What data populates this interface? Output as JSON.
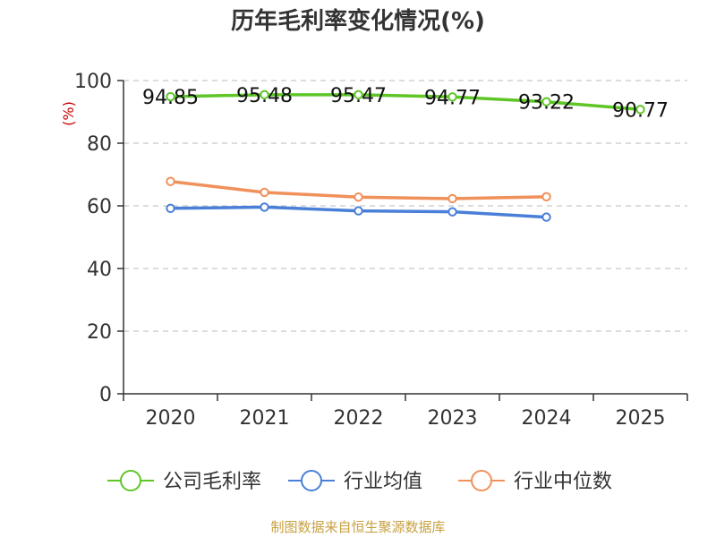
{
  "chart_data": {
    "type": "line",
    "title": "历年毛利率变化情况(%)",
    "ylabel": "(%)",
    "categories": [
      "2020",
      "2021",
      "2022",
      "2023",
      "2024",
      "2025"
    ],
    "yticks": [
      "0",
      "20",
      "40",
      "60",
      "80",
      "100"
    ],
    "ylim": [
      0,
      100
    ],
    "grid": true,
    "legend_position": "bottom",
    "series": [
      {
        "name": "公司毛利率",
        "color": "#5ec627",
        "values": [
          94.85,
          95.48,
          95.47,
          94.77,
          93.22,
          90.77
        ],
        "labels": [
          "94.85",
          "95.48",
          "95.47",
          "94.77",
          "93.22",
          "90.77"
        ]
      },
      {
        "name": "行业均值",
        "color": "#4a7fd8",
        "values": [
          59.2,
          59.6,
          58.4,
          58.1,
          56.4,
          null
        ]
      },
      {
        "name": "行业中位数",
        "color": "#f0905a",
        "values": [
          67.8,
          64.3,
          62.8,
          62.3,
          62.9,
          null
        ]
      }
    ],
    "source": "制图数据来自恒生聚源数据库"
  }
}
